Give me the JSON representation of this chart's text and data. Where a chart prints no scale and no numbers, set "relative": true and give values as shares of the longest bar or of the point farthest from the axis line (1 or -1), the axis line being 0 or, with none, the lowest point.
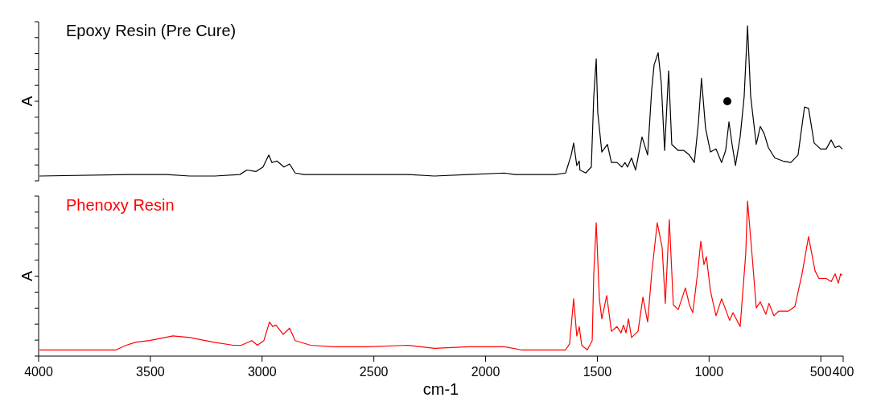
{
  "chart_data": [
    {
      "type": "line",
      "title": "Epoxy Resin (Pre Cure)",
      "ylabel": "A",
      "relative": true,
      "xlim": [
        4000,
        400
      ],
      "tick_labels": false,
      "series": [
        {
          "color": "#000000",
          "x": [
            3996,
            3593,
            3532,
            3428,
            3323,
            3212,
            3100,
            3068,
            3028,
            2996,
            2970,
            2956,
            2934,
            2902,
            2877,
            2852,
            2812,
            2679,
            2528,
            2348,
            2229,
            2078,
            1916,
            1869,
            1718,
            1689,
            1642,
            1617,
            1606,
            1592,
            1581,
            1578,
            1552,
            1527,
            1516,
            1505,
            1498,
            1480,
            1455,
            1437,
            1412,
            1390,
            1376,
            1365,
            1347,
            1329,
            1300,
            1275,
            1257,
            1246,
            1228,
            1214,
            1199,
            1181,
            1167,
            1138,
            1113,
            1088,
            1066,
            1048,
            1034,
            1016,
            994,
            969,
            944,
            926,
            911,
            897,
            882,
            861,
            843,
            828,
            814,
            789,
            771,
            753,
            735,
            706,
            670,
            634,
            602,
            573,
            555,
            530,
            501,
            476,
            454,
            436,
            418,
            404
          ],
          "values": [
            0,
            0.01,
            0.01,
            0.01,
            0,
            0,
            0.01,
            0.04,
            0.03,
            0.06,
            0.14,
            0.09,
            0.1,
            0.06,
            0.08,
            0.02,
            0.01,
            0.01,
            0.01,
            0.01,
            0,
            0.01,
            0.02,
            0.01,
            0.01,
            0.01,
            0.02,
            0.14,
            0.22,
            0.07,
            0.1,
            0.04,
            0.02,
            0.06,
            0.53,
            0.78,
            0.42,
            0.16,
            0.21,
            0.09,
            0.09,
            0.06,
            0.09,
            0.06,
            0.12,
            0.04,
            0.26,
            0.14,
            0.57,
            0.74,
            0.82,
            0.62,
            0.17,
            0.7,
            0.21,
            0.17,
            0.17,
            0.14,
            0.09,
            0.35,
            0.65,
            0.32,
            0.16,
            0.18,
            0.09,
            0.17,
            0.36,
            0.21,
            0.07,
            0.26,
            0.53,
            1,
            0.53,
            0.21,
            0.33,
            0.28,
            0.19,
            0.12,
            0.1,
            0.09,
            0.14,
            0.46,
            0.45,
            0.22,
            0.18,
            0.18,
            0.24,
            0.19,
            0.2,
            0.18
          ]
        }
      ]
    },
    {
      "type": "line",
      "title": "Phenoxy Resin",
      "xlabel": "cm-1",
      "ylabel": "A",
      "relative": true,
      "xlim": [
        4000,
        400
      ],
      "xticks": [
        4000,
        3500,
        3000,
        2500,
        2000,
        1500,
        1000,
        500,
        400
      ],
      "tick_labels": "x",
      "series": [
        {
          "color": "#ff0000",
          "x": [
            3996,
            3654,
            3608,
            3564,
            3503,
            3399,
            3323,
            3219,
            3129,
            3093,
            3046,
            3021,
            2992,
            2967,
            2952,
            2938,
            2906,
            2877,
            2852,
            2783,
            2679,
            2528,
            2348,
            2229,
            2078,
            1916,
            1840,
            1718,
            1689,
            1642,
            1624,
            1606,
            1592,
            1581,
            1570,
            1545,
            1523,
            1516,
            1505,
            1491,
            1480,
            1458,
            1437,
            1412,
            1394,
            1383,
            1372,
            1361,
            1347,
            1318,
            1296,
            1275,
            1257,
            1232,
            1210,
            1196,
            1178,
            1160,
            1138,
            1106,
            1088,
            1073,
            1052,
            1037,
            1023,
            1012,
            994,
            969,
            944,
            908,
            893,
            861,
            836,
            828,
            807,
            789,
            771,
            746,
            732,
            710,
            688,
            645,
            616,
            584,
            555,
            526,
            508,
            476,
            454,
            436,
            422,
            411,
            404
          ],
          "values": [
            0.04,
            0.04,
            0.07,
            0.09,
            0.1,
            0.13,
            0.12,
            0.09,
            0.07,
            0.07,
            0.1,
            0.07,
            0.1,
            0.22,
            0.19,
            0.2,
            0.14,
            0.18,
            0.1,
            0.07,
            0.06,
            0.06,
            0.07,
            0.05,
            0.06,
            0.06,
            0.04,
            0.04,
            0.04,
            0.04,
            0.08,
            0.37,
            0.13,
            0.19,
            0.07,
            0.04,
            0.1,
            0.53,
            0.86,
            0.37,
            0.24,
            0.39,
            0.16,
            0.19,
            0.15,
            0.2,
            0.15,
            0.24,
            0.12,
            0.16,
            0.38,
            0.22,
            0.53,
            0.86,
            0.7,
            0.34,
            0.88,
            0.33,
            0.3,
            0.44,
            0.33,
            0.28,
            0.53,
            0.74,
            0.59,
            0.64,
            0.42,
            0.26,
            0.37,
            0.23,
            0.28,
            0.19,
            0.66,
            1,
            0.64,
            0.31,
            0.35,
            0.27,
            0.34,
            0.26,
            0.29,
            0.29,
            0.32,
            0.53,
            0.77,
            0.55,
            0.5,
            0.5,
            0.48,
            0.53,
            0.47,
            0.53,
            0.52
          ]
        }
      ]
    }
  ]
}
